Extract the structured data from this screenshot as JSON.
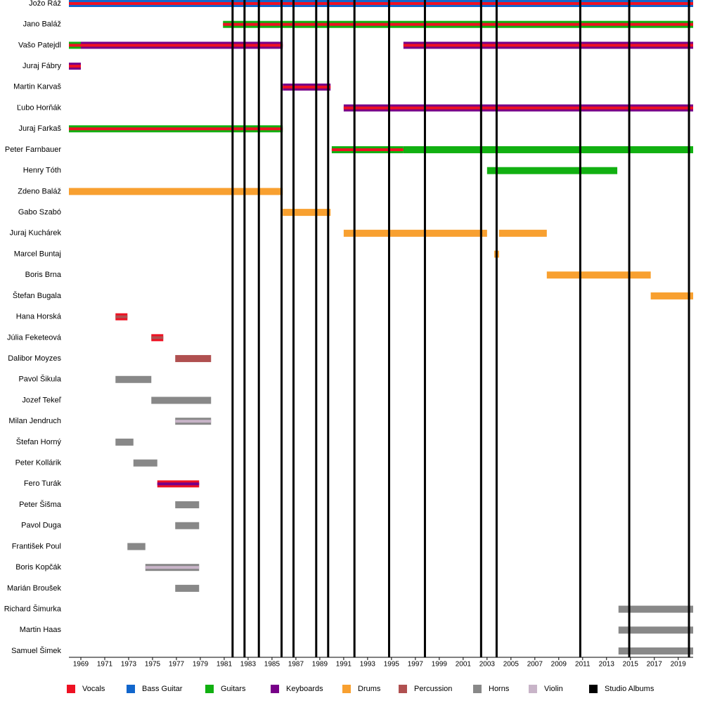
{
  "chart_data": {
    "type": "timeline",
    "xlim": [
      1968,
      2020.25
    ],
    "xticks": [
      1969,
      1971,
      1973,
      1975,
      1977,
      1979,
      1981,
      1983,
      1985,
      1987,
      1989,
      1991,
      1993,
      1995,
      1997,
      1999,
      2001,
      2003,
      2005,
      2007,
      2009,
      2011,
      2013,
      2015,
      2017,
      2019
    ],
    "roles": [
      {
        "name": "Vocals",
        "color": "#ee1122"
      },
      {
        "name": "Bass Guitar",
        "color": "#1166cc"
      },
      {
        "name": "Guitars",
        "color": "#11b011"
      },
      {
        "name": "Keyboards",
        "color": "#770088"
      },
      {
        "name": "Drums",
        "color": "#f8a030"
      },
      {
        "name": "Percussion",
        "color": "#b05050"
      },
      {
        "name": "Horns",
        "color": "#888888"
      },
      {
        "name": "Violin",
        "color": "#c8b4c8"
      },
      {
        "name": "Studio Albums",
        "color": "#000000"
      }
    ],
    "albums": [
      1981.7,
      1982.7,
      1983.9,
      1985.8,
      1986.8,
      1988.7,
      1989.7,
      1991.9,
      1994.8,
      1997.8,
      2002.5,
      2003.8,
      2010.8,
      2014.9,
      2019.9
    ],
    "members": [
      {
        "name": "Jožo Ráž",
        "periods": [
          {
            "start": 1968,
            "end": 2020.25,
            "roles": [
              "Bass Guitar",
              "Vocals"
            ]
          }
        ]
      },
      {
        "name": "Jano Baláž",
        "periods": [
          {
            "start": 1980.9,
            "end": 2020.25,
            "roles": [
              "Guitars",
              "Vocals"
            ]
          }
        ]
      },
      {
        "name": "Vašo Patejdl",
        "periods": [
          {
            "start": 1968,
            "end": 1969,
            "roles": [
              "Guitars",
              "Vocals"
            ]
          },
          {
            "start": 1969,
            "end": 1985.9,
            "roles": [
              "Keyboards",
              "Vocals"
            ]
          },
          {
            "start": 1996,
            "end": 2020.25,
            "roles": [
              "Keyboards",
              "Vocals"
            ]
          }
        ]
      },
      {
        "name": "Juraj Fábry",
        "periods": [
          {
            "start": 1968,
            "end": 1969,
            "roles": [
              "Keyboards",
              "Vocals"
            ]
          }
        ]
      },
      {
        "name": "Martin Karvaš",
        "periods": [
          {
            "start": 1985.9,
            "end": 1989.9,
            "roles": [
              "Keyboards",
              "Vocals"
            ]
          }
        ]
      },
      {
        "name": "Ľubo Horňák",
        "periods": [
          {
            "start": 1991,
            "end": 2020.25,
            "roles": [
              "Keyboards",
              "Vocals"
            ]
          }
        ]
      },
      {
        "name": "Juraj Farkaš",
        "periods": [
          {
            "start": 1968,
            "end": 1985.9,
            "roles": [
              "Guitars",
              "Vocals"
            ]
          }
        ]
      },
      {
        "name": "Peter Farnbauer",
        "periods": [
          {
            "start": 1990,
            "end": 1996,
            "roles": [
              "Guitars",
              "Vocals"
            ]
          },
          {
            "start": 1996,
            "end": 2020.25,
            "roles": [
              "Guitars"
            ]
          }
        ]
      },
      {
        "name": "Henry Tóth",
        "periods": [
          {
            "start": 2003,
            "end": 2013.9,
            "roles": [
              "Guitars"
            ]
          }
        ]
      },
      {
        "name": "Zdeno Baláž",
        "periods": [
          {
            "start": 1968,
            "end": 1985.9,
            "roles": [
              "Drums"
            ]
          }
        ]
      },
      {
        "name": "Gabo Szabó",
        "periods": [
          {
            "start": 1985.9,
            "end": 1989.9,
            "roles": [
              "Drums"
            ]
          }
        ]
      },
      {
        "name": "Juraj Kuchárek",
        "periods": [
          {
            "start": 1991,
            "end": 2003,
            "roles": [
              "Drums"
            ]
          },
          {
            "start": 2004,
            "end": 2008,
            "roles": [
              "Drums"
            ]
          }
        ]
      },
      {
        "name": "Marcel Buntaj",
        "periods": [
          {
            "start": 2003.6,
            "end": 2004,
            "roles": [
              "Drums"
            ]
          }
        ]
      },
      {
        "name": "Boris Brna",
        "periods": [
          {
            "start": 2008,
            "end": 2016.7,
            "roles": [
              "Drums"
            ]
          }
        ]
      },
      {
        "name": "Štefan Bugala",
        "periods": [
          {
            "start": 2016.7,
            "end": 2020.25,
            "roles": [
              "Drums"
            ]
          }
        ]
      },
      {
        "name": "Hana Horská",
        "periods": [
          {
            "start": 1971.9,
            "end": 1972.9,
            "roles": [
              "Vocals",
              "Percussion"
            ]
          }
        ]
      },
      {
        "name": "Júlia Feketeová",
        "periods": [
          {
            "start": 1974.9,
            "end": 1975.9,
            "roles": [
              "Vocals",
              "Percussion"
            ]
          }
        ]
      },
      {
        "name": "Dalibor Moyzes",
        "periods": [
          {
            "start": 1976.9,
            "end": 1979.9,
            "roles": [
              "Percussion"
            ]
          }
        ]
      },
      {
        "name": "Pavol Šikula",
        "periods": [
          {
            "start": 1971.9,
            "end": 1974.9,
            "roles": [
              "Horns"
            ]
          }
        ]
      },
      {
        "name": "Jozef Tekeľ",
        "periods": [
          {
            "start": 1974.9,
            "end": 1979.9,
            "roles": [
              "Horns"
            ]
          }
        ]
      },
      {
        "name": "Milan Jendruch",
        "periods": [
          {
            "start": 1976.9,
            "end": 1979.9,
            "roles": [
              "Horns",
              "Violin"
            ]
          }
        ]
      },
      {
        "name": "Štefan Horný",
        "periods": [
          {
            "start": 1971.9,
            "end": 1973.4,
            "roles": [
              "Horns"
            ]
          }
        ]
      },
      {
        "name": "Peter Kollárik",
        "periods": [
          {
            "start": 1973.4,
            "end": 1975.4,
            "roles": [
              "Horns"
            ]
          }
        ]
      },
      {
        "name": "Fero Turák",
        "periods": [
          {
            "start": 1975.4,
            "end": 1978.9,
            "roles": [
              "Vocals",
              "Keyboards"
            ]
          }
        ]
      },
      {
        "name": "Peter Šišma",
        "periods": [
          {
            "start": 1976.9,
            "end": 1978.9,
            "roles": [
              "Horns"
            ]
          }
        ]
      },
      {
        "name": "Pavol Duga",
        "periods": [
          {
            "start": 1976.9,
            "end": 1978.9,
            "roles": [
              "Horns"
            ]
          }
        ]
      },
      {
        "name": "František Poul",
        "periods": [
          {
            "start": 1972.9,
            "end": 1974.4,
            "roles": [
              "Horns"
            ]
          }
        ]
      },
      {
        "name": "Boris Kopčák",
        "periods": [
          {
            "start": 1974.4,
            "end": 1978.9,
            "roles": [
              "Horns",
              "Violin"
            ]
          }
        ]
      },
      {
        "name": "Marián Broušek",
        "periods": [
          {
            "start": 1976.9,
            "end": 1978.9,
            "roles": [
              "Horns"
            ]
          }
        ]
      },
      {
        "name": "Richard Šimurka",
        "periods": [
          {
            "start": 2014,
            "end": 2020.25,
            "roles": [
              "Horns"
            ]
          }
        ]
      },
      {
        "name": "Martin Haas",
        "periods": [
          {
            "start": 2014,
            "end": 2020.25,
            "roles": [
              "Horns"
            ]
          }
        ]
      },
      {
        "name": "Samuel Šimek",
        "periods": [
          {
            "start": 2014,
            "end": 2020.25,
            "roles": [
              "Horns"
            ]
          }
        ]
      }
    ]
  }
}
